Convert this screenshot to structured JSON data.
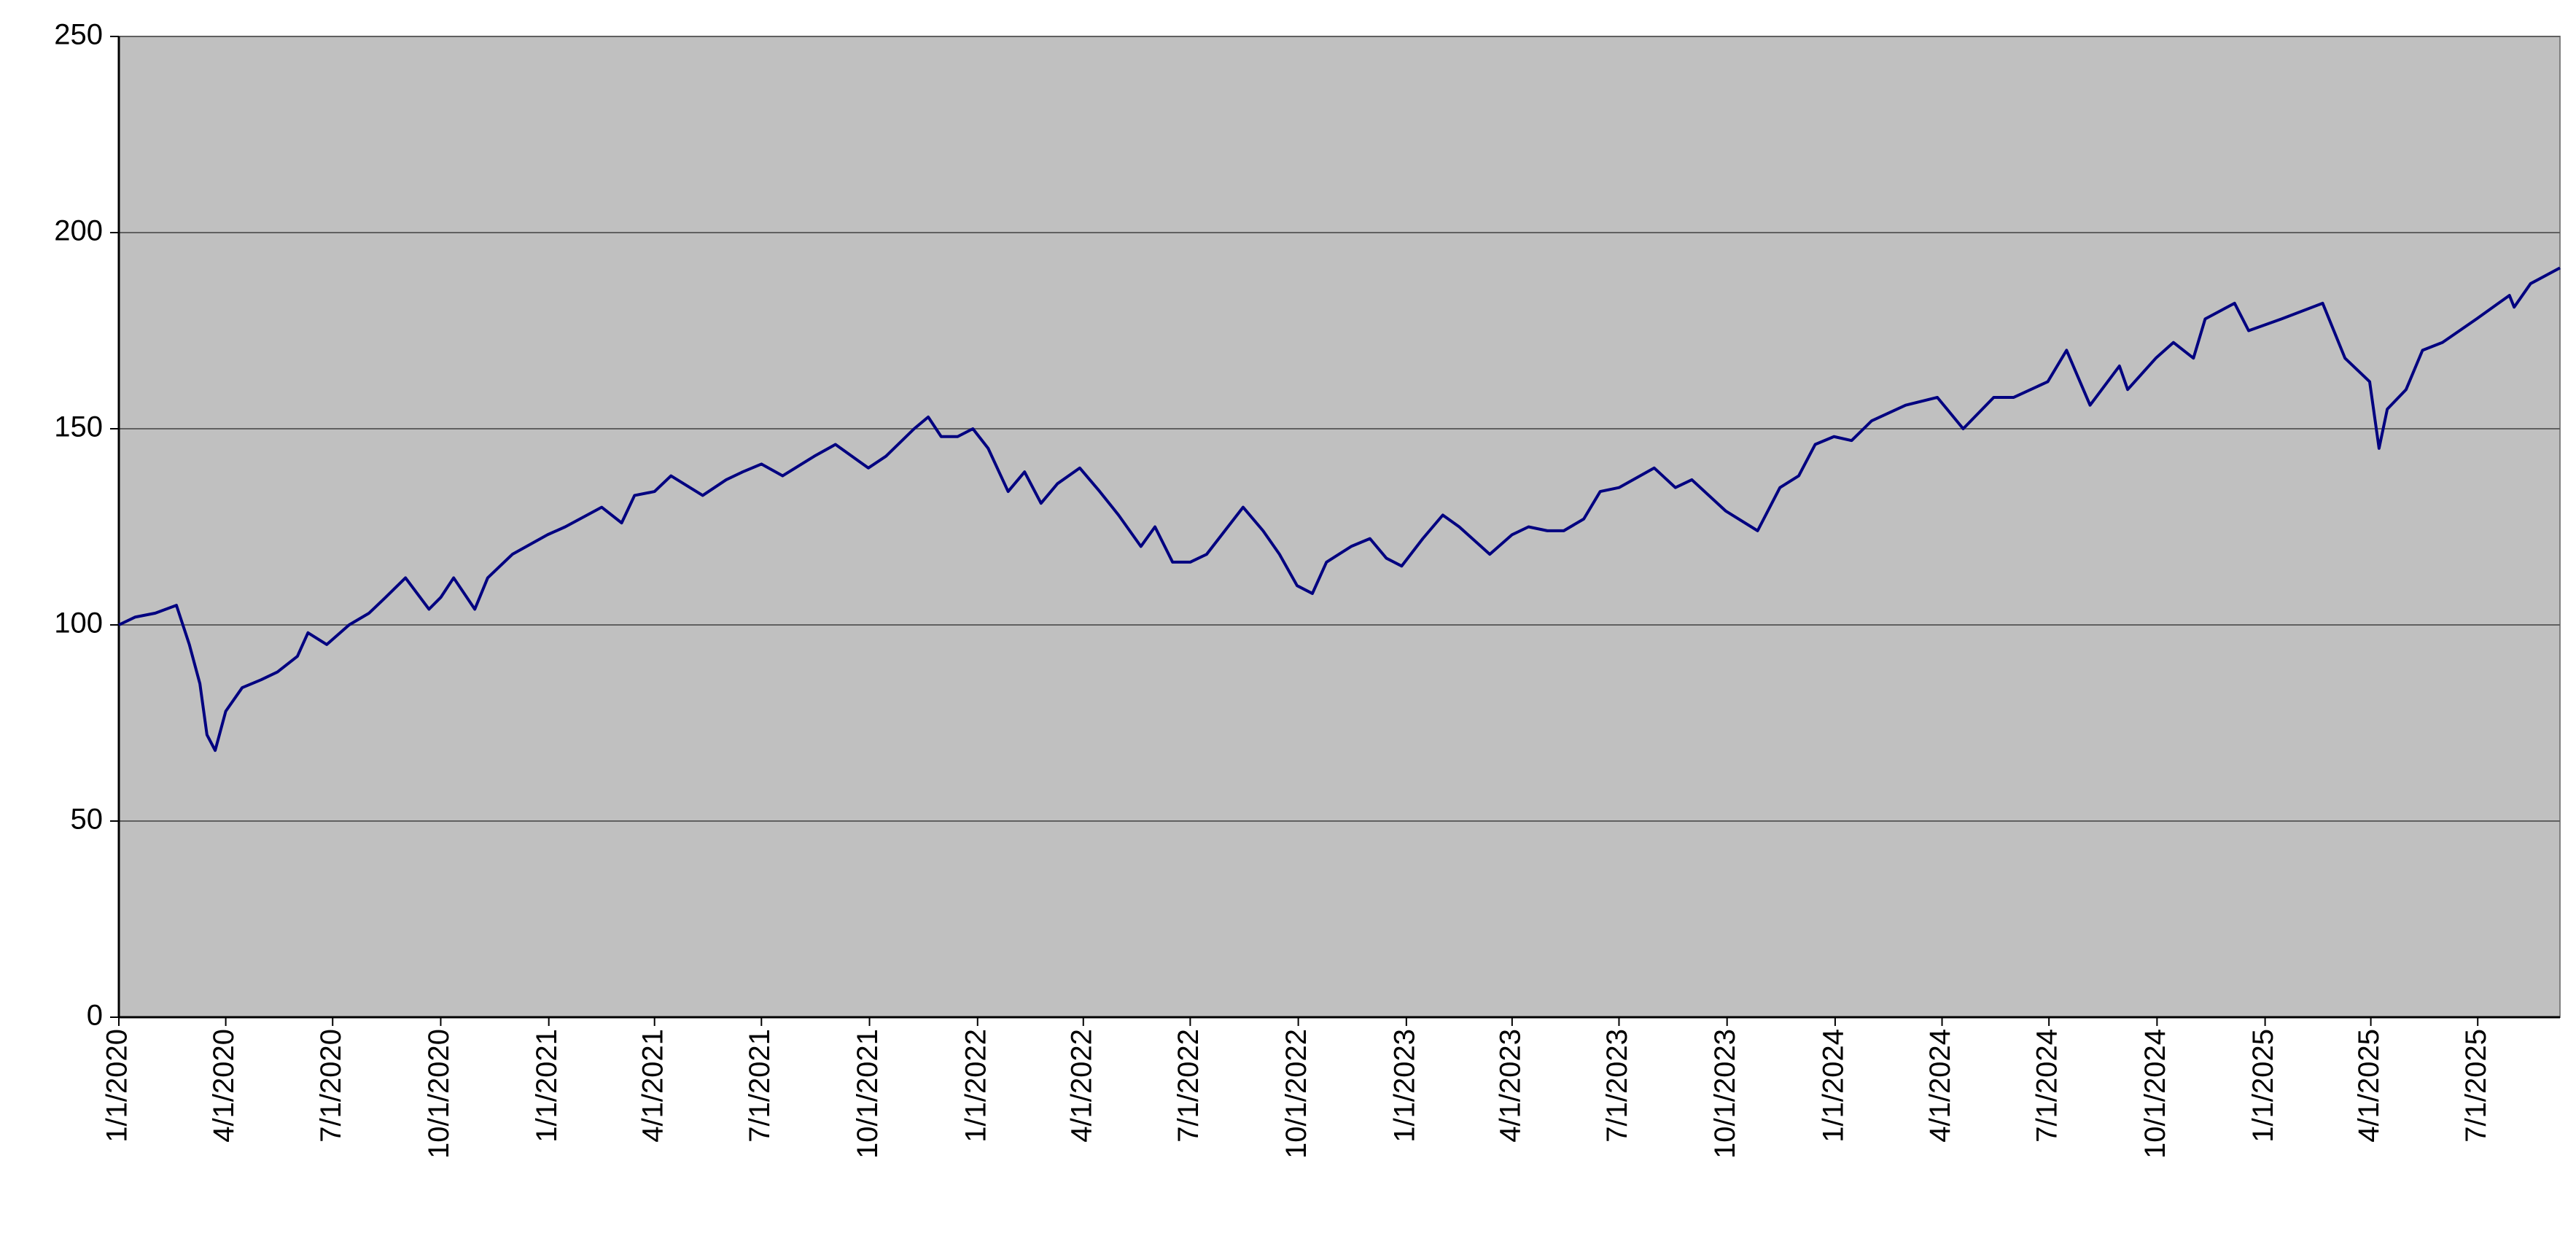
{
  "chart_data": {
    "type": "line",
    "x": [
      "2020-01-01",
      "2020-01-15",
      "2020-02-01",
      "2020-02-19",
      "2020-03-01",
      "2020-03-10",
      "2020-03-16",
      "2020-03-23",
      "2020-04-01",
      "2020-04-15",
      "2020-05-01",
      "2020-05-15",
      "2020-06-01",
      "2020-06-10",
      "2020-06-26",
      "2020-07-15",
      "2020-08-01",
      "2020-08-15",
      "2020-09-01",
      "2020-09-21",
      "2020-10-01",
      "2020-10-12",
      "2020-10-30",
      "2020-11-10",
      "2020-12-01",
      "2020-12-31",
      "2021-01-15",
      "2021-02-15",
      "2021-03-04",
      "2021-03-15",
      "2021-04-01",
      "2021-04-15",
      "2021-05-12",
      "2021-06-01",
      "2021-06-15",
      "2021-07-01",
      "2021-07-19",
      "2021-08-15",
      "2021-09-02",
      "2021-09-30",
      "2021-10-15",
      "2021-11-08",
      "2021-11-20",
      "2021-12-01",
      "2021-12-15",
      "2021-12-28",
      "2022-01-10",
      "2022-01-27",
      "2022-02-10",
      "2022-02-24",
      "2022-03-10",
      "2022-03-29",
      "2022-04-15",
      "2022-05-01",
      "2022-05-20",
      "2022-06-01",
      "2022-06-16",
      "2022-07-01",
      "2022-07-15",
      "2022-08-15",
      "2022-09-01",
      "2022-09-15",
      "2022-09-30",
      "2022-10-13",
      "2022-10-25",
      "2022-11-15",
      "2022-12-01",
      "2022-12-15",
      "2022-12-28",
      "2023-01-15",
      "2023-02-01",
      "2023-02-15",
      "2023-03-13",
      "2023-04-01",
      "2023-04-15",
      "2023-05-01",
      "2023-05-15",
      "2023-06-01",
      "2023-06-15",
      "2023-07-01",
      "2023-07-31",
      "2023-08-18",
      "2023-09-01",
      "2023-09-30",
      "2023-10-27",
      "2023-11-15",
      "2023-12-01",
      "2023-12-15",
      "2023-12-31",
      "2024-01-15",
      "2024-02-01",
      "2024-03-01",
      "2024-03-28",
      "2024-04-19",
      "2024-05-15",
      "2024-06-01",
      "2024-06-30",
      "2024-07-16",
      "2024-08-05",
      "2024-08-30",
      "2024-09-06",
      "2024-09-30",
      "2024-10-15",
      "2024-11-01",
      "2024-11-11",
      "2024-12-06",
      "2024-12-18",
      "2025-01-15",
      "2025-02-19",
      "2025-03-10",
      "2025-03-31",
      "2025-04-08",
      "2025-04-15",
      "2025-05-01",
      "2025-05-15",
      "2025-06-01",
      "2025-06-30",
      "2025-07-28",
      "2025-08-01",
      "2025-08-15",
      "2025-09-09"
    ],
    "series": [
      {
        "color": "#000080",
        "values": [
          100,
          102,
          103,
          105,
          95,
          85,
          72,
          68,
          78,
          84,
          86,
          88,
          92,
          98,
          95,
          100,
          103,
          107,
          112,
          104,
          107,
          112,
          104,
          112,
          118,
          123,
          125,
          130,
          126,
          133,
          134,
          138,
          133,
          137,
          139,
          141,
          138,
          143,
          146,
          140,
          143,
          150,
          153,
          148,
          148,
          150,
          145,
          134,
          139,
          131,
          136,
          140,
          134,
          128,
          120,
          125,
          116,
          116,
          118,
          130,
          124,
          118,
          110,
          108,
          116,
          120,
          122,
          117,
          115,
          122,
          128,
          125,
          118,
          123,
          125,
          124,
          124,
          127,
          134,
          135,
          140,
          135,
          137,
          129,
          124,
          135,
          138,
          146,
          148,
          147,
          152,
          156,
          158,
          150,
          158,
          158,
          162,
          170,
          156,
          166,
          160,
          168,
          172,
          168,
          178,
          182,
          175,
          178,
          182,
          168,
          162,
          145,
          155,
          160,
          170,
          172,
          178,
          184,
          181,
          187,
          191
        ]
      }
    ],
    "xlim": [
      "2020-01-01",
      "2025-09-09"
    ],
    "xticks": [
      {
        "value": "2020-01-01",
        "label": "1/1/2020"
      },
      {
        "value": "2020-04-01",
        "label": "4/1/2020"
      },
      {
        "value": "2020-07-01",
        "label": "7/1/2020"
      },
      {
        "value": "2020-10-01",
        "label": "10/1/2020"
      },
      {
        "value": "2021-01-01",
        "label": "1/1/2021"
      },
      {
        "value": "2021-04-01",
        "label": "4/1/2021"
      },
      {
        "value": "2021-07-01",
        "label": "7/1/2021"
      },
      {
        "value": "2021-10-01",
        "label": "10/1/2021"
      },
      {
        "value": "2022-01-01",
        "label": "1/1/2022"
      },
      {
        "value": "2022-04-01",
        "label": "4/1/2022"
      },
      {
        "value": "2022-07-01",
        "label": "7/1/2022"
      },
      {
        "value": "2022-10-01",
        "label": "10/1/2022"
      },
      {
        "value": "2023-01-01",
        "label": "1/1/2023"
      },
      {
        "value": "2023-04-01",
        "label": "4/1/2023"
      },
      {
        "value": "2023-07-01",
        "label": "7/1/2023"
      },
      {
        "value": "2023-10-01",
        "label": "10/1/2023"
      },
      {
        "value": "2024-01-01",
        "label": "1/1/2024"
      },
      {
        "value": "2024-04-01",
        "label": "4/1/2024"
      },
      {
        "value": "2024-07-01",
        "label": "7/1/2024"
      },
      {
        "value": "2024-10-01",
        "label": "10/1/2024"
      },
      {
        "value": "2025-01-01",
        "label": "1/1/2025"
      },
      {
        "value": "2025-04-01",
        "label": "4/1/2025"
      },
      {
        "value": "2025-07-01",
        "label": "7/1/2025"
      }
    ],
    "ylim": [
      0,
      250
    ],
    "yticks": [
      0,
      50,
      100,
      150,
      200,
      250
    ],
    "grid": true,
    "background": "#c0c0c0"
  }
}
